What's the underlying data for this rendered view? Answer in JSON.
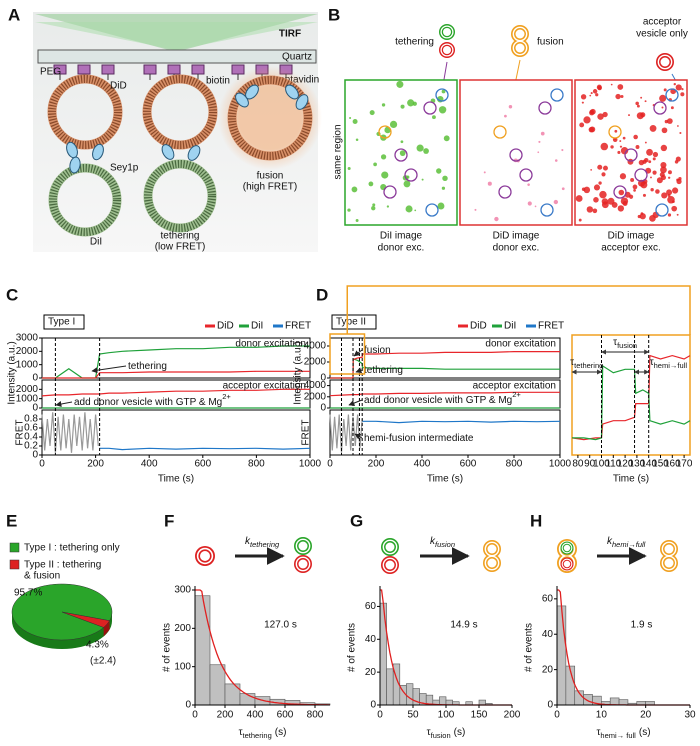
{
  "panel_letters": [
    "A",
    "B",
    "C",
    "D",
    "E",
    "F",
    "G",
    "H"
  ],
  "panel_a": {
    "tirf": "TIRF",
    "quartz": "Quartz",
    "peg": "PEG",
    "did": "DiD",
    "biotin": "biotin",
    "streptavidin": "streptavidin",
    "sey1p": "Sey1p",
    "dii": "DiI",
    "tethering": [
      "tethering",
      "(low FRET)"
    ],
    "fusion": [
      "fusion",
      "(high FRET)"
    ]
  },
  "panel_b": {
    "tethering": "tethering",
    "fusion": "fusion",
    "acceptor": [
      "acceptor",
      "vesicle only"
    ],
    "side_label": "same region",
    "captions": [
      [
        "DiI image",
        "donor exc."
      ],
      [
        "DiD image",
        "donor exc."
      ],
      [
        "DiD image",
        "acceptor exc."
      ]
    ]
  },
  "chart_data": [
    {
      "type": "trace",
      "badge": "Type I",
      "legend": [
        {
          "name": "DiD",
          "color": "#e8262b"
        },
        {
          "name": "DiI",
          "color": "#1fa13a"
        },
        {
          "name": "FRET",
          "color": "#1f77c8"
        }
      ],
      "xlabel": "Time (s)",
      "ylabel": "Intensity (a.u.)",
      "xlim": [
        0,
        1000
      ],
      "xticks": [
        0,
        200,
        400,
        600,
        800,
        1000
      ],
      "x": [
        0,
        50,
        100,
        150,
        200,
        215,
        250,
        300,
        400,
        500,
        600,
        700,
        800,
        900,
        1000
      ],
      "events": [
        50,
        215
      ],
      "subplots": [
        {
          "label": "donor excitation",
          "ylim": [
            0,
            3000
          ],
          "yticks": [
            0,
            1000,
            2000,
            3000
          ],
          "series": [
            {
              "color": "#1fa13a",
              "values": [
                0,
                0,
                700,
                0,
                0,
                1800,
                1900,
                2000,
                2100,
                2200,
                2200,
                2300,
                2300,
                2400,
                2400
              ]
            },
            {
              "color": "#e8262b",
              "values": [
                0,
                0,
                0,
                0,
                0,
                400,
                400,
                400,
                450,
                450,
                450,
                450,
                500,
                500,
                500
              ]
            }
          ]
        },
        {
          "label": "acceptor excitation",
          "ylim": [
            0,
            3000
          ],
          "yticks": [
            0,
            1000,
            2000
          ],
          "series": [
            {
              "color": "#1fa13a",
              "values": [
                0,
                0,
                0,
                0,
                0,
                0,
                0,
                0,
                0,
                0,
                0,
                0,
                0,
                0,
                0
              ]
            },
            {
              "color": "#e8262b",
              "values": [
                1300,
                1400,
                1400,
                1500,
                1500,
                1500,
                1600,
                1600,
                1700,
                1800,
                1800,
                1900,
                1900,
                2000,
                2000
              ]
            }
          ]
        },
        {
          "ylabel": "FRET",
          "ylim": [
            0,
            1
          ],
          "yticks": [
            0,
            0.2,
            0.4,
            0.6,
            0.8
          ],
          "series": [
            {
              "color": "#999999",
              "x": [
                0,
                10,
                20,
                30,
                40,
                50,
                60,
                70,
                80,
                90,
                100,
                110,
                120,
                130,
                140,
                150,
                160,
                170,
                180,
                190,
                200,
                210
              ],
              "values": [
                0.9,
                0.1,
                0.8,
                0.2,
                0.95,
                0.05,
                0.85,
                0.1,
                0.9,
                0.15,
                0.8,
                0.05,
                0.9,
                0.2,
                0.85,
                0.1,
                0.95,
                0.15,
                0.8,
                0.1,
                0.9,
                0.2
              ]
            },
            {
              "color": "#1f77c8",
              "values": [
                null,
                null,
                null,
                null,
                null,
                0.15,
                0.15,
                0.12,
                0.15,
                0.13,
                0.15,
                0.14,
                0.15,
                0.13,
                0.15
              ]
            }
          ]
        }
      ],
      "annotations": [
        {
          "text": "tethering"
        },
        {
          "text": "add donor vesicle with GTP & Mg",
          "sup": "2+"
        }
      ]
    },
    {
      "type": "trace",
      "badge": "Type II",
      "legend": [
        {
          "name": "DiD",
          "color": "#e8262b"
        },
        {
          "name": "DiI",
          "color": "#1fa13a"
        },
        {
          "name": "FRET",
          "color": "#1f77c8"
        }
      ],
      "xlabel": "Time (s)",
      "ylabel": "Intensity (a.u.)",
      "xlim": [
        0,
        1000
      ],
      "xticks": [
        0,
        200,
        400,
        600,
        800,
        1000
      ],
      "x": [
        0,
        50,
        100,
        101,
        120,
        140,
        141,
        200,
        300,
        400,
        500,
        600,
        700,
        800,
        900,
        1000
      ],
      "events": [
        50,
        100,
        128,
        140
      ],
      "subplots": [
        {
          "label": "donor excitation",
          "ylim": [
            0,
            5000
          ],
          "yticks": [
            0,
            2000,
            4000
          ],
          "series": [
            {
              "color": "#1fa13a",
              "values": [
                0,
                0,
                0,
                2400,
                2200,
                1800,
                1300,
                1200,
                1200,
                1200,
                1100,
                1100,
                1100,
                1100,
                1100,
                1100
              ]
            },
            {
              "color": "#e8262b",
              "values": [
                0,
                0,
                0,
                2300,
                2500,
                2600,
                3000,
                3000,
                3100,
                3100,
                3200,
                3200,
                3200,
                3300,
                3300,
                3300
              ]
            }
          ]
        },
        {
          "label": "acceptor excitation",
          "ylim": [
            0,
            5000
          ],
          "yticks": [
            0,
            2000,
            4000
          ],
          "series": [
            {
              "color": "#1fa13a",
              "values": [
                0,
                0,
                0,
                0,
                0,
                0,
                0,
                0,
                0,
                0,
                0,
                0,
                0,
                0,
                0,
                0
              ]
            },
            {
              "color": "#e8262b",
              "values": [
                2200,
                2300,
                2400,
                2400,
                2400,
                2500,
                2500,
                2500,
                2600,
                2600,
                2700,
                2700,
                2700,
                2800,
                2800,
                2800
              ]
            }
          ]
        },
        {
          "ylabel": "FRET",
          "ylim": [
            0,
            1
          ],
          "series": [
            {
              "color": "#999999",
              "x": [
                0,
                10,
                20,
                30,
                40,
                50,
                60,
                70,
                80,
                90,
                100,
                110,
                120,
                130,
                140
              ],
              "values": [
                0.9,
                0.1,
                0.85,
                0.15,
                0.9,
                0.05,
                0.8,
                0.2,
                0.9,
                0.1,
                0.85,
                0.2,
                0.9,
                0.15,
                0.8
              ]
            },
            {
              "color": "#1f77c8",
              "values": [
                null,
                null,
                null,
                null,
                null,
                null,
                0.75,
                0.75,
                0.72,
                0.75,
                0.74,
                0.75,
                0.73,
                0.75,
                0.74,
                0.75
              ]
            }
          ]
        }
      ],
      "annotations": [
        {
          "text": "fusion"
        },
        {
          "text": "tethering"
        },
        {
          "text": "add donor vesicle with GTP & Mg",
          "sup": "2+"
        },
        {
          "text": "hemi-fusion intermediate"
        }
      ],
      "inset": {
        "xlabel": "Time (s)",
        "xlim": [
          75,
          175
        ],
        "xticks": [
          80,
          90,
          100,
          110,
          120,
          130,
          140,
          150,
          160,
          170
        ],
        "ylim": [
          0,
          3500
        ],
        "x": [
          75,
          85,
          95,
          100,
          101,
          110,
          120,
          128,
          129,
          135,
          140,
          141,
          150,
          160,
          170,
          175
        ],
        "series": [
          {
            "color": "#e8262b",
            "values": [
              500,
              450,
              500,
              500,
              900,
              1000,
              1000,
              1100,
              1500,
              1500,
              1500,
              2900,
              2800,
              2900,
              2800,
              2900
            ]
          },
          {
            "color": "#1fa13a",
            "values": [
              500,
              500,
              450,
              500,
              2600,
              2400,
              2500,
              2500,
              1800,
              1900,
              1800,
              1000,
              900,
              1000,
              900,
              1000
            ]
          }
        ],
        "events": [
          100,
          128,
          140
        ],
        "intervals": [
          {
            "symbol": "τ",
            "sub": "tethering",
            "start": 75,
            "end": 100
          },
          {
            "symbol": "τ",
            "sub": "fusion",
            "start": 100,
            "end": 140
          },
          {
            "symbol": "τ",
            "sub": "hemi→full",
            "start": 128,
            "end": 140
          }
        ]
      }
    },
    {
      "type": "pie",
      "values": [
        95.7,
        4.3
      ],
      "value_labels": [
        "95.7%",
        "4.3%"
      ],
      "error_label": "(±2.4)",
      "categories": [
        [
          "Type I : tethering only"
        ],
        [
          "Type II : tethering",
          "& fusion"
        ]
      ],
      "colors": [
        "#2aa52a",
        "#dd2222"
      ]
    },
    {
      "type": "histogram",
      "rate": {
        "symbol": "k",
        "sub": "tethering"
      },
      "ylabel": "# of events",
      "xlabel": {
        "symbol": "τ",
        "sub": "tethering",
        "unit": "(s)"
      },
      "bins": [
        0,
        100,
        200,
        300,
        400,
        500,
        600,
        700,
        800,
        900
      ],
      "counts": [
        285,
        105,
        55,
        30,
        22,
        15,
        12,
        6,
        3
      ],
      "color": "#c0c0c0",
      "fit": {
        "value": 127.0,
        "label": "127.0 s",
        "color": "#e02020"
      },
      "xlim": [
        0,
        900
      ],
      "xticks": [
        0,
        200,
        400,
        600,
        800
      ],
      "ylim": [
        0,
        300
      ],
      "yticks": [
        0,
        100,
        200,
        300
      ]
    },
    {
      "type": "histogram",
      "rate": {
        "symbol": "k",
        "sub": "fusion"
      },
      "ylabel": "# of events",
      "xlabel": {
        "symbol": "τ",
        "sub": "fusion",
        "unit": "(s)"
      },
      "bins": [
        0,
        10,
        20,
        30,
        40,
        50,
        60,
        70,
        80,
        90,
        100,
        110,
        120,
        130,
        140,
        150,
        160,
        170
      ],
      "counts": [
        62,
        22,
        25,
        12,
        13,
        10,
        7,
        6,
        3,
        5,
        3,
        2,
        0,
        2,
        0,
        3,
        1
      ],
      "color": "#c0c0c0",
      "fit": {
        "value": 14.9,
        "label": "14.9 s",
        "color": "#e02020"
      },
      "xlim": [
        0,
        200
      ],
      "xticks": [
        0,
        50,
        100,
        150,
        200
      ],
      "ylim": [
        0,
        70
      ],
      "yticks": [
        0,
        20,
        40,
        60
      ]
    },
    {
      "type": "histogram",
      "rate": {
        "symbol": "k",
        "sub": "hemi→full"
      },
      "ylabel": "# of events",
      "xlabel": {
        "symbol": "τ",
        "sub": "hemi→ full",
        "unit": "(s)"
      },
      "bins": [
        0,
        2,
        4,
        6,
        8,
        10,
        12,
        14,
        16,
        18,
        20,
        22
      ],
      "counts": [
        56,
        22,
        8,
        6,
        5,
        2,
        4,
        3,
        1,
        2,
        2
      ],
      "color": "#c0c0c0",
      "fit": {
        "value": 1.9,
        "label": "1.9 s",
        "color": "#e02020"
      },
      "xlim": [
        0,
        30
      ],
      "xticks": [
        0,
        10,
        20,
        30
      ],
      "ylim": [
        0,
        65
      ],
      "yticks": [
        0,
        20,
        40,
        60
      ]
    }
  ]
}
